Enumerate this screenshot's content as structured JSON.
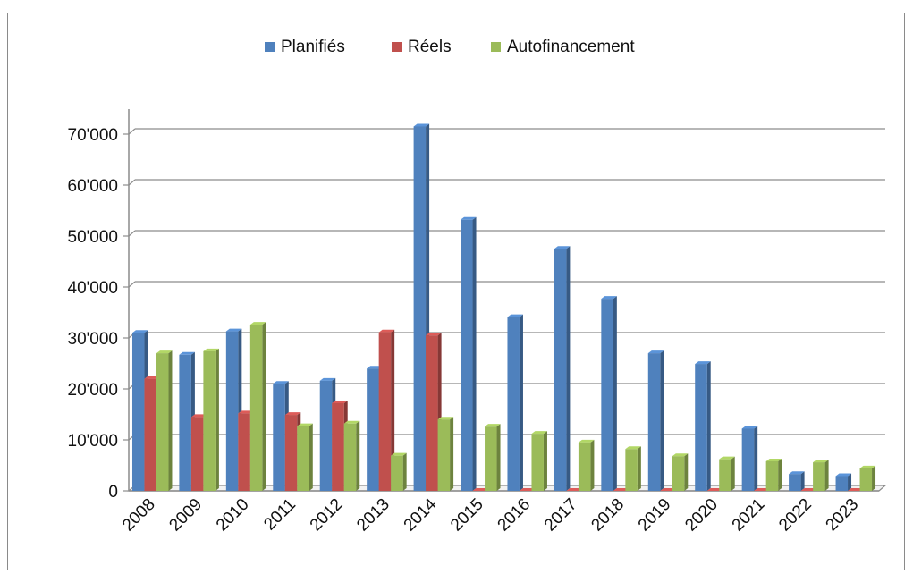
{
  "chart_data": {
    "type": "bar",
    "title": "",
    "xlabel": "",
    "ylabel": "",
    "categories": [
      "2008",
      "2009",
      "2010",
      "2011",
      "2012",
      "2013",
      "2014",
      "2015",
      "2016",
      "2017",
      "2018",
      "2019",
      "2020",
      "2021",
      "2022",
      "2023"
    ],
    "series": [
      {
        "name": "Planifiés",
        "color": "#4f81bd",
        "values": [
          31000,
          26700,
          31300,
          21000,
          21600,
          24000,
          71500,
          53200,
          34100,
          47500,
          37700,
          27000,
          24900,
          12200,
          3300,
          2900
        ]
      },
      {
        "name": "Réels",
        "color": "#c0504d",
        "values": [
          22000,
          14500,
          15200,
          14900,
          17200,
          31100,
          30500,
          0,
          0,
          0,
          0,
          0,
          0,
          0,
          0,
          0
        ]
      },
      {
        "name": "Autofinancement",
        "color": "#9bbb59",
        "values": [
          27000,
          27400,
          32600,
          12700,
          13200,
          6900,
          14000,
          12600,
          11200,
          9500,
          8200,
          6800,
          6200,
          5800,
          5600,
          4400
        ]
      }
    ],
    "ylim": [
      0,
      70000
    ],
    "yticks": [
      0,
      10000,
      20000,
      30000,
      40000,
      50000,
      60000,
      70000
    ],
    "ytick_labels": [
      "0",
      "10'000",
      "20'000",
      "30'000",
      "40'000",
      "50'000",
      "60'000",
      "70'000"
    ],
    "grid": true,
    "legend_position": "top-center"
  }
}
